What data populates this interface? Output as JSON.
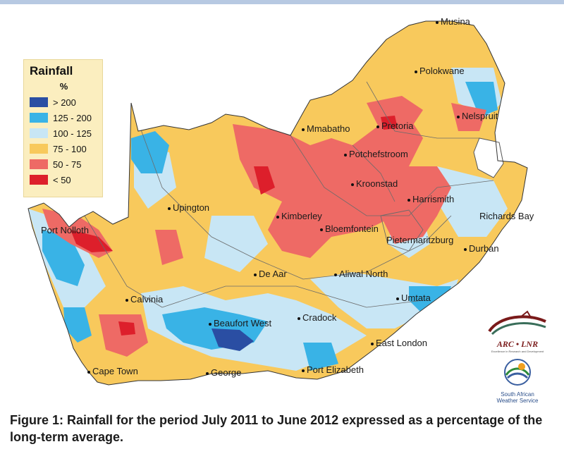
{
  "legend": {
    "title": "Rainfall",
    "unit": "%",
    "items": [
      {
        "label": "> 200",
        "color": "#2a4ea3"
      },
      {
        "label": "125 - 200",
        "color": "#39b3e6"
      },
      {
        "label": "100 - 125",
        "color": "#c8e6f5"
      },
      {
        "label": "75 - 100",
        "color": "#f8c95c"
      },
      {
        "label": "50 - 75",
        "color": "#ee6a65"
      },
      {
        "label": "< 50",
        "color": "#dd1f2b"
      }
    ]
  },
  "cities": {
    "musina": "Musina",
    "polokwane": "Polokwane",
    "nelspruit": "Nelspruit",
    "mmabatho": "Mmabatho",
    "pretoria": "Pretoria",
    "potchefstroom": "Potchefstroom",
    "kroonstad": "Kroonstad",
    "harrismith": "Harrismith",
    "richards_bay": "Richards Bay",
    "upington": "Upington",
    "kimberley": "Kimberley",
    "bloemfontein": "Bloemfontein",
    "pietermaritzburg": "Pietermaritzburg",
    "durban": "Durban",
    "port_nolloth": "Port Nolloth",
    "de_aar": "De Aar",
    "aliwal_north": "Aliwal North",
    "umtata": "Umtata",
    "calvinia": "Calvinia",
    "cradock": "Cradock",
    "beaufort_west": "Beaufort West",
    "east_london": "East London",
    "cape_town": "Cape Town",
    "george": "George",
    "port_elizabeth": "Port Elizabeth"
  },
  "logos": {
    "arc": "ARC • LNR",
    "arc_tagline": "Excellence in Research and Development",
    "saws_line1": "South African",
    "saws_line2": "Weather Service"
  },
  "caption": "Figure 1: Rainfall for the period July 2011 to June 2012 expressed as a percentage of the long-term average.",
  "colors": {
    "frame_top": "#b7c9e2",
    "base": "#f8c95c"
  }
}
